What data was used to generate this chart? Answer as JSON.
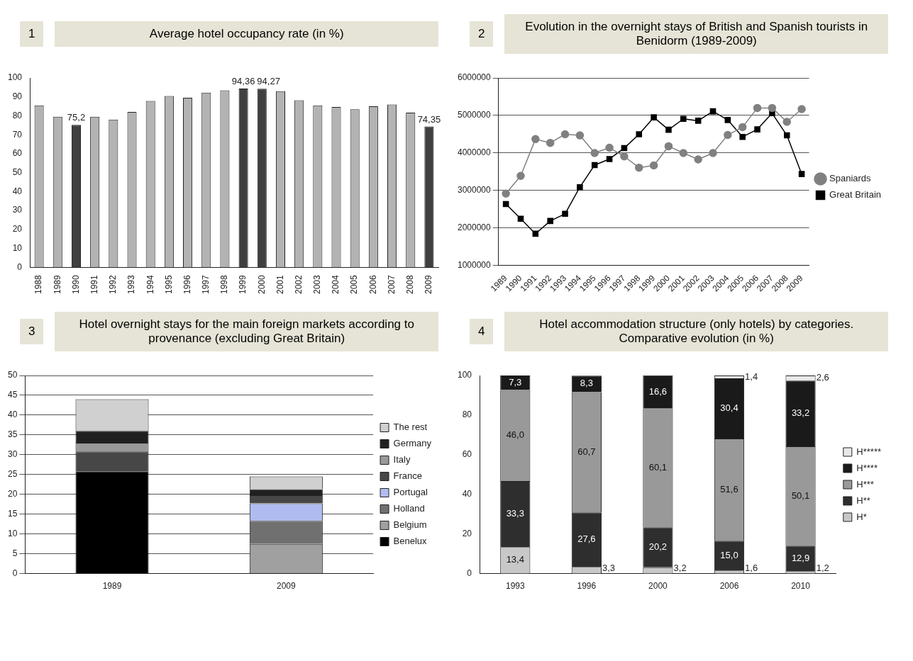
{
  "chart_data": [
    {
      "type": "bar",
      "title": "Average hotel occupancy rate (in %)",
      "annotations": [
        "1"
      ],
      "categories": [
        "1988",
        "1989",
        "1990",
        "1991",
        "1992",
        "1993",
        "1994",
        "1995",
        "1996",
        "1997",
        "1998",
        "1999",
        "2000",
        "2001",
        "2002",
        "2003",
        "2004",
        "2005",
        "2006",
        "2007",
        "2008",
        "2009"
      ],
      "values": [
        85.5,
        79.5,
        75.2,
        79.5,
        78,
        82,
        87.8,
        90.5,
        89.5,
        92.2,
        93.5,
        94.36,
        94.27,
        93,
        88.2,
        85.5,
        84.7,
        83.4,
        85,
        86,
        81.7,
        74.35
      ],
      "colors": [
        "#b3b3b3",
        "#b3b3b3",
        "#404040",
        "#b3b3b3",
        "#b3b3b3",
        "#b3b3b3",
        "#b3b3b3",
        "#b3b3b3",
        "#b3b3b3",
        "#b3b3b3",
        "#b3b3b3",
        "#404040",
        "#404040",
        "#b3b3b3",
        "#b3b3b3",
        "#b3b3b3",
        "#b3b3b3",
        "#b3b3b3",
        "#b3b3b3",
        "#b3b3b3",
        "#b3b3b3",
        "#404040"
      ],
      "value_labels": [
        null,
        null,
        "75,2",
        null,
        null,
        null,
        null,
        null,
        null,
        null,
        null,
        "94,36",
        "94,27",
        null,
        null,
        null,
        null,
        null,
        null,
        null,
        null,
        "74,35"
      ],
      "ylim": [
        0,
        100
      ],
      "yticks": [
        0,
        10,
        20,
        30,
        40,
        50,
        60,
        70,
        80,
        90,
        100
      ],
      "grid": false,
      "legend": false
    },
    {
      "type": "line",
      "title": "Evolution in the overnight stays of British and Spanish tourists in Benidorm (1989-2009)",
      "annotations": [
        "2"
      ],
      "categories": [
        "1989",
        "1990",
        "1991",
        "1992",
        "1993",
        "1994",
        "1995",
        "1996",
        "1997",
        "1998",
        "1999",
        "2000",
        "2001",
        "2002",
        "2003",
        "2004",
        "2005",
        "2006",
        "2007",
        "2008",
        "2009"
      ],
      "series": [
        {
          "name": "Spaniards",
          "color": "#808080",
          "marker": "circle",
          "values": [
            2920000,
            3390000,
            4370000,
            4270000,
            4500000,
            4470000,
            4000000,
            4140000,
            3910000,
            3610000,
            3670000,
            4180000,
            4000000,
            3830000,
            4000000,
            4480000,
            4690000,
            5200000,
            5200000,
            4830000,
            5170000
          ]
        },
        {
          "name": "Great Britain",
          "color": "#000000",
          "marker": "square",
          "values": [
            2640000,
            2250000,
            1850000,
            2190000,
            2380000,
            3090000,
            3680000,
            3840000,
            4130000,
            4500000,
            4950000,
            4620000,
            4910000,
            4860000,
            5110000,
            4880000,
            4430000,
            4630000,
            5060000,
            4470000,
            3440000
          ]
        }
      ],
      "ylim": [
        1000000,
        6000000
      ],
      "yticks": [
        1000000,
        2000000,
        3000000,
        4000000,
        5000000,
        6000000
      ],
      "grid": "y",
      "legend": "right",
      "line_style": "solid"
    },
    {
      "type": "bar",
      "stacked": true,
      "title": "Hotel overnight stays for the main foreign markets according to provenance (excluding Great Britain)",
      "annotations": [
        "3"
      ],
      "categories": [
        "1989",
        "2009"
      ],
      "series": [
        {
          "name": "Benelux",
          "color": "#000000",
          "values": [
            25.8,
            null
          ]
        },
        {
          "name": "Belgium",
          "color": "#a0a0a0",
          "values": [
            null,
            7.5
          ]
        },
        {
          "name": "Holland",
          "color": "#707070",
          "values": [
            null,
            5.8
          ]
        },
        {
          "name": "Portugal",
          "color": "#b0bcf0",
          "values": [
            null,
            4.4
          ]
        },
        {
          "name": "France",
          "color": "#474747",
          "values": [
            5,
            2.1
          ]
        },
        {
          "name": "Italy",
          "color": "#999999",
          "values": [
            2.2,
            null
          ]
        },
        {
          "name": "Germany",
          "color": "#202020",
          "values": [
            3,
            1.5
          ]
        },
        {
          "name": "The rest",
          "color": "#d0d0d0",
          "values": [
            8,
            3.2
          ]
        }
      ],
      "ylim": [
        0,
        50
      ],
      "yticks": [
        0,
        5,
        10,
        15,
        20,
        25,
        30,
        35,
        40,
        45,
        50
      ],
      "grid": "y",
      "legend": "right"
    },
    {
      "type": "bar",
      "stacked": true,
      "title": "Hotel accommodation structure (only hotels) by categories. Comparative evolution (in %)",
      "annotations": [
        "4"
      ],
      "categories": [
        "1993",
        "1996",
        "2000",
        "2006",
        "2010"
      ],
      "series": [
        {
          "name": "H*",
          "color": "#c8c8c8",
          "values": [
            13.4,
            3.3,
            3.2,
            1.6,
            1.2
          ],
          "value_labels": [
            "13,4",
            "3,3",
            "3,2",
            "1,6",
            "1,2"
          ]
        },
        {
          "name": "H**",
          "color": "#2e2e2e",
          "values": [
            33.3,
            27.6,
            20.2,
            15.0,
            12.9
          ],
          "value_labels": [
            "33,3",
            "27,6",
            "20,2",
            "15,0",
            "12,9"
          ]
        },
        {
          "name": "H***",
          "color": "#999999",
          "values": [
            46.0,
            60.7,
            60.1,
            51.6,
            50.1
          ],
          "value_labels": [
            "46,0",
            "60,7",
            "60,1",
            "51,6",
            "50,1"
          ]
        },
        {
          "name": "H****",
          "color": "#1a1a1a",
          "values": [
            7.3,
            8.3,
            16.6,
            30.4,
            33.2
          ],
          "value_labels": [
            "7,3",
            "8,3",
            "16,6",
            "30,4",
            "33,2"
          ]
        },
        {
          "name": "H*****",
          "color": "#e8e8e8",
          "values": [
            null,
            null,
            null,
            1.4,
            2.6
          ],
          "value_labels": [
            null,
            null,
            null,
            "1,4",
            "2,6"
          ]
        }
      ],
      "ylim": [
        0,
        100
      ],
      "yticks": [
        0,
        20,
        40,
        60,
        80,
        100
      ],
      "grid": false,
      "legend": "right"
    }
  ]
}
